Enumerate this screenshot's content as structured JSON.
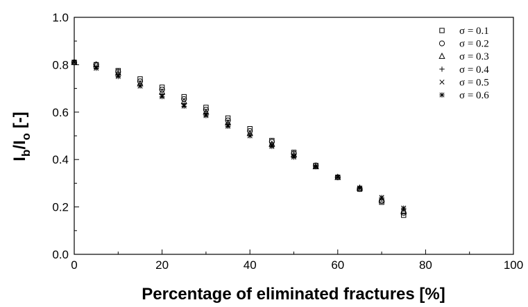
{
  "chart_data": {
    "type": "scatter",
    "title": "",
    "xlabel": "Percentage of eliminated fractures [%]",
    "ylabel_parts": {
      "main": "I",
      "sub1": "b",
      "slash": "/I",
      "sub2": "o",
      "unit": " [-]"
    },
    "xlim": [
      0,
      100
    ],
    "ylim": [
      0.0,
      1.0
    ],
    "x_ticks": [
      0,
      20,
      40,
      60,
      80,
      100
    ],
    "x_tick_labels": [
      "0",
      "20",
      "40",
      "60",
      "80",
      "100"
    ],
    "y_ticks": [
      0.0,
      0.2,
      0.4,
      0.6,
      0.8,
      1.0
    ],
    "y_tick_labels": [
      "0.0",
      "0.2",
      "0.4",
      "0.6",
      "0.8",
      "1.0"
    ],
    "grid": false,
    "legend_position": "top-right",
    "x": [
      0,
      5,
      10,
      15,
      20,
      25,
      30,
      35,
      40,
      45,
      50,
      55,
      60,
      65,
      70,
      75
    ],
    "series": [
      {
        "name": "σ = 0.1",
        "symbol": "square",
        "values": [
          0.81,
          0.8,
          0.775,
          0.74,
          0.705,
          0.665,
          0.62,
          0.575,
          0.53,
          0.48,
          0.43,
          0.375,
          0.325,
          0.275,
          0.22,
          0.165
        ]
      },
      {
        "name": "σ = 0.2",
        "symbol": "circle",
        "values": [
          0.81,
          0.8,
          0.77,
          0.73,
          0.695,
          0.655,
          0.61,
          0.565,
          0.52,
          0.475,
          0.425,
          0.375,
          0.325,
          0.275,
          0.225,
          0.175
        ]
      },
      {
        "name": "σ = 0.3",
        "symbol": "triangle",
        "values": [
          0.81,
          0.8,
          0.765,
          0.72,
          0.685,
          0.645,
          0.6,
          0.555,
          0.51,
          0.465,
          0.42,
          0.37,
          0.325,
          0.28,
          0.23,
          0.18
        ]
      },
      {
        "name": "σ = 0.4",
        "symbol": "plus",
        "values": [
          0.81,
          0.79,
          0.76,
          0.715,
          0.675,
          0.635,
          0.595,
          0.55,
          0.505,
          0.46,
          0.415,
          0.37,
          0.325,
          0.28,
          0.235,
          0.19
        ]
      },
      {
        "name": "σ = 0.5",
        "symbol": "cross",
        "values": [
          0.81,
          0.79,
          0.755,
          0.71,
          0.67,
          0.63,
          0.59,
          0.545,
          0.5,
          0.46,
          0.415,
          0.37,
          0.325,
          0.28,
          0.24,
          0.195
        ]
      },
      {
        "name": "σ = 0.6",
        "symbol": "asterisk",
        "values": [
          0.81,
          0.785,
          0.75,
          0.71,
          0.665,
          0.625,
          0.585,
          0.54,
          0.5,
          0.455,
          0.41,
          0.37,
          0.325,
          0.28,
          0.24,
          0.195
        ]
      }
    ]
  }
}
